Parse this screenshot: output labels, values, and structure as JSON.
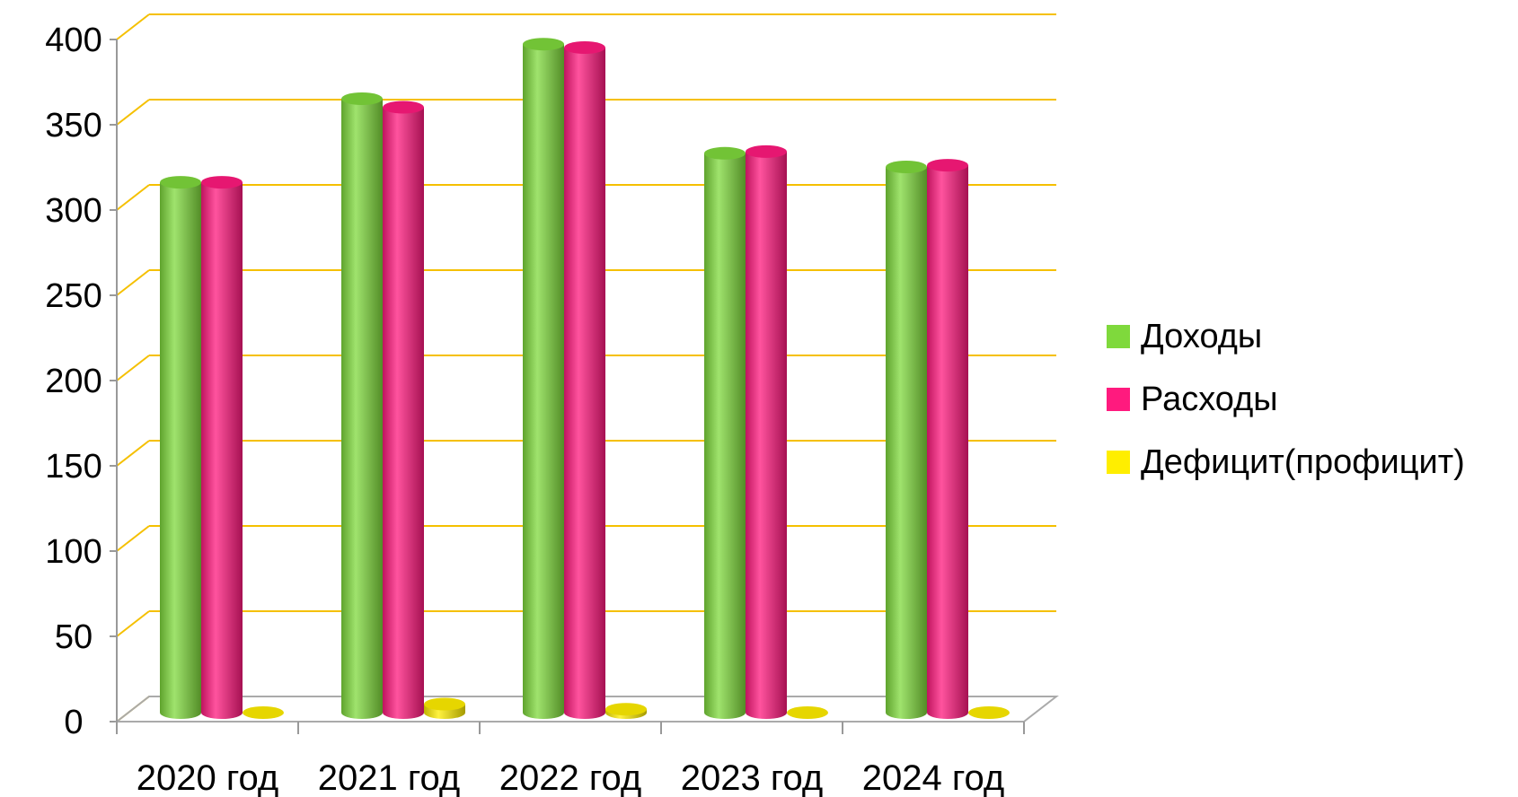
{
  "chart_data": {
    "type": "bar",
    "title": "",
    "xlabel": "",
    "ylabel": "",
    "categories": [
      "2020 год",
      "2021 год",
      "2022 год",
      "2023 год",
      "2024 год"
    ],
    "series": [
      {
        "name": "Доходы",
        "values": [
          311,
          360,
          392,
          328,
          320
        ],
        "color": "#7FD93C"
      },
      {
        "name": "Расходы",
        "values": [
          311,
          355,
          390,
          329,
          321
        ],
        "color": "#FF1A7E"
      },
      {
        "name": "Дефицит(профицит)",
        "values": [
          0,
          5,
          2,
          0,
          0
        ],
        "color": "#FFEE00"
      }
    ],
    "ylim": [
      0,
      400
    ],
    "yticks": [
      "0",
      "50",
      "100",
      "150",
      "200",
      "250",
      "300",
      "350",
      "400"
    ],
    "grid": true,
    "grid_color": "#F5C000",
    "legend_position": "right"
  }
}
